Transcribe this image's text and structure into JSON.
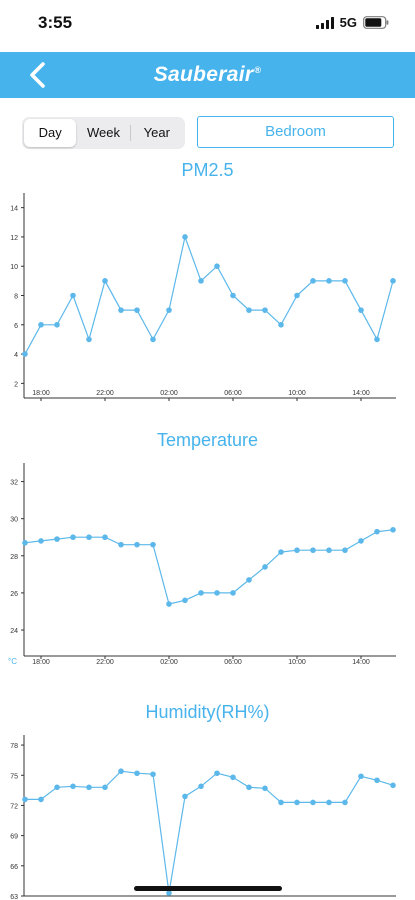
{
  "status": {
    "time": "3:55",
    "network": "5G"
  },
  "header": {
    "brand": "Sauberair",
    "brand_mark": "®"
  },
  "range": {
    "options": [
      "Day",
      "Week",
      "Year"
    ],
    "selected": "Day"
  },
  "room": {
    "label": "Bedroom"
  },
  "icons": {
    "back": "chevron-left-icon",
    "signal": "signal-bars-icon",
    "battery": "battery-icon"
  },
  "colors": {
    "accent": "#47b3ec",
    "line": "#5cb8ea"
  },
  "chart_data": [
    {
      "type": "line",
      "title": "PM2.5",
      "unit": "",
      "x_ticks": [
        "18:00",
        "22:00",
        "02:00",
        "06:00",
        "10:00",
        "14:00"
      ],
      "y_ticks": [
        2,
        4,
        6,
        8,
        10,
        12,
        14
      ],
      "ylim": [
        1,
        15
      ],
      "values": [
        4,
        6,
        6,
        8,
        5,
        9,
        7,
        7,
        5,
        7,
        12,
        9,
        10,
        8,
        7,
        7,
        6,
        8,
        9,
        9,
        9,
        7,
        5,
        9
      ]
    },
    {
      "type": "line",
      "title": "Temperature",
      "unit": "°C",
      "x_ticks": [
        "18:00",
        "22:00",
        "02:00",
        "06:00",
        "10:00",
        "14:00"
      ],
      "y_ticks": [
        24,
        26,
        28,
        30,
        32
      ],
      "ylim": [
        22.6,
        33
      ],
      "values": [
        28.7,
        28.8,
        28.9,
        29.0,
        29.0,
        29.0,
        28.6,
        28.6,
        28.6,
        25.4,
        25.6,
        26.0,
        26.0,
        26.0,
        26.7,
        27.4,
        28.2,
        28.3,
        28.3,
        28.3,
        28.3,
        28.8,
        29.3,
        29.4
      ]
    },
    {
      "type": "line",
      "title": "Humidity(RH%)",
      "unit": "",
      "x_ticks": [],
      "y_ticks": [
        63,
        66,
        69,
        72,
        75,
        78
      ],
      "ylim": [
        63,
        79
      ],
      "values": [
        72.6,
        72.6,
        73.8,
        73.9,
        73.8,
        73.8,
        75.4,
        75.2,
        75.1,
        63.3,
        72.9,
        73.9,
        75.2,
        74.8,
        73.8,
        73.7,
        72.3,
        72.3,
        72.3,
        72.3,
        72.3,
        74.9,
        74.5,
        74.0
      ]
    }
  ]
}
